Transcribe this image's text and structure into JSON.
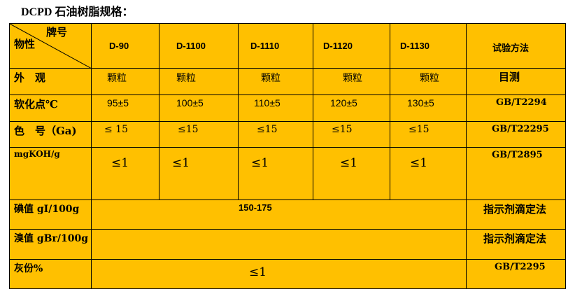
{
  "title": "DCPD 石油树脂规格：",
  "header": {
    "brand": "牌号",
    "property": "物性",
    "grades": [
      "D-90",
      "D-1100",
      "D-1110",
      "D-1120",
      "D-1130"
    ],
    "method": "试验方法"
  },
  "rows": [
    {
      "label": "外　观",
      "values": [
        "颗粒",
        "颗粒",
        "颗粒",
        "颗粒",
        "颗粒"
      ],
      "method": "目测"
    },
    {
      "label": "软化点℃",
      "values": [
        "95±5",
        "100±5",
        "110±5",
        "120±5",
        "130±5"
      ],
      "method": "GB/T2294"
    },
    {
      "label": "色　号（Ga)",
      "values": [
        "≤ 15",
        "≤15",
        "≤15",
        "≤15",
        "≤15"
      ],
      "method": "GB/T22295"
    },
    {
      "label": "mgKOH/g",
      "values": [
        "≤1",
        "≤1",
        "≤1",
        "≤1",
        "≤1"
      ],
      "method": "GB/T2895"
    },
    {
      "label": "碘值 gI/100g",
      "value": "150-175",
      "method": "指示剂滴定法"
    },
    {
      "label": "溴值 gBr/100g",
      "value": "",
      "method": "指示剂滴定法"
    },
    {
      "label": "灰份%",
      "value": "≤1",
      "method": "GB/T2295"
    }
  ],
  "colors": {
    "cell": "#FFC000"
  }
}
